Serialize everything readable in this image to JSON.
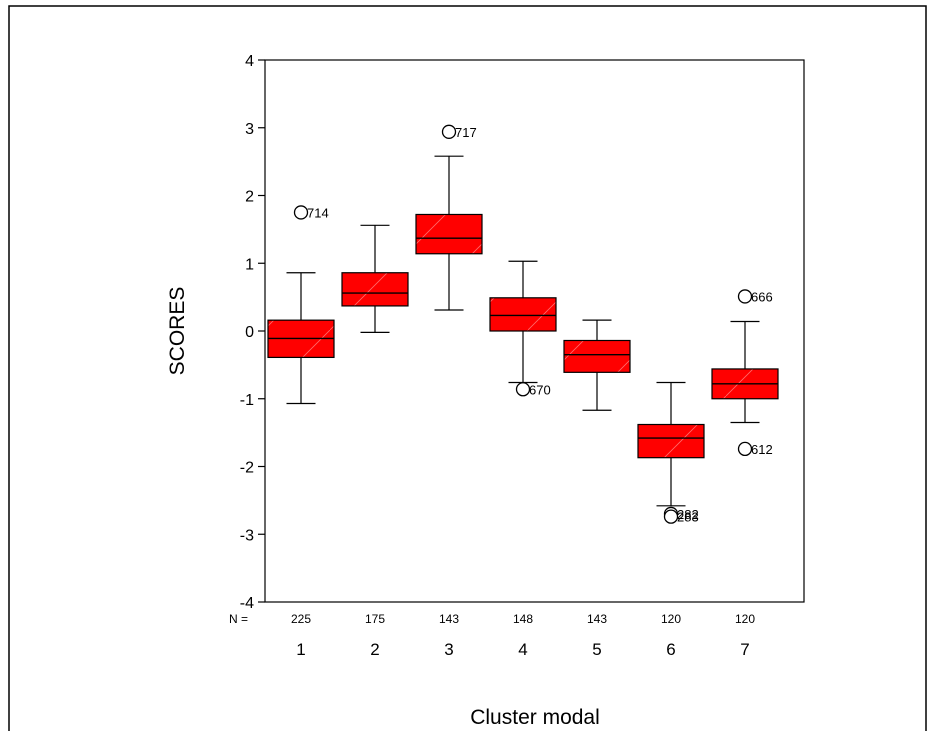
{
  "chart_data": {
    "type": "box",
    "title": "",
    "xlabel": "Cluster modal",
    "ylabel": "SCORES",
    "ylim": [
      -4,
      4
    ],
    "yticks": [
      "4",
      "3",
      "2",
      "1",
      "0",
      "-1",
      "-2",
      "-3",
      "-4"
    ],
    "ytick_values": [
      4,
      3,
      2,
      1,
      0,
      -1,
      -2,
      -3,
      -4
    ],
    "n_prefix": "N =",
    "grid": false,
    "box_color": "#ff0000",
    "categories": [
      "1",
      "2",
      "3",
      "4",
      "5",
      "6",
      "7"
    ],
    "n": [
      "225",
      "175",
      "143",
      "148",
      "143",
      "120",
      "120"
    ],
    "boxes": [
      {
        "min": -1.07,
        "q1": -0.39,
        "median": -0.11,
        "q3": 0.16,
        "max": 0.86
      },
      {
        "min": -0.02,
        "q1": 0.37,
        "median": 0.56,
        "q3": 0.86,
        "max": 1.56
      },
      {
        "min": 0.31,
        "q1": 1.14,
        "median": 1.37,
        "q3": 1.72,
        "max": 2.58
      },
      {
        "min": -0.76,
        "q1": 0.0,
        "median": 0.23,
        "q3": 0.49,
        "max": 1.03
      },
      {
        "min": -1.17,
        "q1": -0.61,
        "median": -0.35,
        "q3": -0.14,
        "max": 0.16
      },
      {
        "min": -2.58,
        "q1": -1.87,
        "median": -1.58,
        "q3": -1.38,
        "max": -0.76
      },
      {
        "min": -1.35,
        "q1": -1.0,
        "median": -0.78,
        "q3": -0.56,
        "max": 0.14
      }
    ],
    "outliers": [
      {
        "category": "1",
        "y": 1.75,
        "label": "714"
      },
      {
        "category": "3",
        "y": 2.94,
        "label": "717"
      },
      {
        "category": "4",
        "y": -0.86,
        "label": "670"
      },
      {
        "category": "6",
        "y": -2.7,
        "label": "282"
      },
      {
        "category": "6",
        "y": -2.74,
        "label": "283"
      },
      {
        "category": "7",
        "y": 0.51,
        "label": "666"
      },
      {
        "category": "7",
        "y": -1.74,
        "label": "612"
      }
    ]
  }
}
